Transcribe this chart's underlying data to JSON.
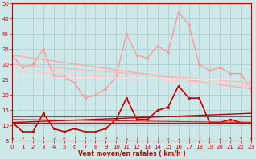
{
  "bg_color": "#cce8e8",
  "grid_color": "#aacccc",
  "xlabel": "Vent moyen/en rafales ( km/h )",
  "xlabel_color": "#cc0000",
  "tick_color": "#cc0000",
  "xmin": 0,
  "xmax": 23,
  "ymin": 5,
  "ymax": 50,
  "yticks": [
    5,
    10,
    15,
    20,
    25,
    30,
    35,
    40,
    45,
    50
  ],
  "xticks": [
    0,
    1,
    2,
    3,
    4,
    5,
    6,
    7,
    8,
    9,
    10,
    11,
    12,
    13,
    14,
    15,
    16,
    17,
    18,
    19,
    20,
    21,
    22,
    23
  ],
  "series": [
    {
      "comment": "light pink rafales upper line with markers - all connected",
      "x": [
        0,
        1,
        2,
        3,
        4,
        5,
        6,
        7,
        8,
        9,
        10,
        11,
        12,
        13,
        14,
        15,
        16,
        17,
        18,
        19,
        20,
        21,
        22,
        23
      ],
      "y": [
        33,
        29,
        30,
        35,
        26,
        26,
        24,
        19,
        20,
        22,
        26,
        40,
        33,
        32,
        36,
        34,
        47,
        43,
        30,
        28,
        29,
        27,
        27,
        22
      ],
      "color": "#ff9999",
      "lw": 1.0,
      "marker": "o",
      "ms": 2.0
    },
    {
      "comment": "light pink trend line 1 - straight declining",
      "x": [
        0,
        23
      ],
      "y": [
        33,
        22
      ],
      "color": "#ffaaaa",
      "lw": 1.0,
      "marker": null,
      "ms": 0
    },
    {
      "comment": "light pink trend line 2 - less steep",
      "x": [
        0,
        23
      ],
      "y": [
        30,
        24
      ],
      "color": "#ffbbbb",
      "lw": 1.0,
      "marker": null,
      "ms": 0
    },
    {
      "comment": "light pink trend line 3",
      "x": [
        0,
        23
      ],
      "y": [
        28,
        23
      ],
      "color": "#ffcccc",
      "lw": 1.0,
      "marker": null,
      "ms": 0
    },
    {
      "comment": "light pink trend line 4 - nearly flat",
      "x": [
        0,
        23
      ],
      "y": [
        26,
        25
      ],
      "color": "#ffdddd",
      "lw": 0.8,
      "marker": null,
      "ms": 0
    },
    {
      "comment": "dark red wind speed with markers",
      "x": [
        0,
        1,
        2,
        3,
        4,
        5,
        6,
        7,
        8,
        9,
        10,
        11,
        12,
        13,
        14,
        15,
        16,
        17,
        18,
        19,
        20,
        21,
        22,
        23
      ],
      "y": [
        11,
        8,
        8,
        14,
        9,
        8,
        9,
        8,
        8,
        9,
        12,
        19,
        12,
        12,
        15,
        16,
        23,
        19,
        19,
        11,
        11,
        12,
        11,
        11
      ],
      "color": "#cc0000",
      "lw": 1.2,
      "marker": "o",
      "ms": 2.0
    },
    {
      "comment": "dark red flat line 1",
      "x": [
        0,
        23
      ],
      "y": [
        11,
        11
      ],
      "color": "#dd0000",
      "lw": 1.0,
      "marker": null,
      "ms": 0
    },
    {
      "comment": "dark red flat line 2",
      "x": [
        0,
        23
      ],
      "y": [
        12,
        12
      ],
      "color": "#cc0000",
      "lw": 0.8,
      "marker": null,
      "ms": 0
    },
    {
      "comment": "dark red flat line 3",
      "x": [
        0,
        23
      ],
      "y": [
        13,
        13
      ],
      "color": "#ee2222",
      "lw": 0.8,
      "marker": null,
      "ms": 0
    },
    {
      "comment": "dark red slight upward trend",
      "x": [
        0,
        23
      ],
      "y": [
        11,
        14
      ],
      "color": "#bb0000",
      "lw": 1.0,
      "marker": null,
      "ms": 0
    },
    {
      "comment": "dark red second trend",
      "x": [
        0,
        23
      ],
      "y": [
        12,
        11
      ],
      "color": "#cc2222",
      "lw": 0.8,
      "marker": null,
      "ms": 0
    }
  ],
  "arrows": [
    "→",
    "↗",
    "↖",
    "↑",
    "↙",
    "←",
    "↑",
    "↑",
    "↑",
    "↗",
    "↗",
    "↘",
    "↓",
    "↓",
    "↓",
    "↙",
    "↙",
    "↓",
    "↓",
    "↓",
    "↙",
    "↖",
    "↖",
    "←"
  ]
}
